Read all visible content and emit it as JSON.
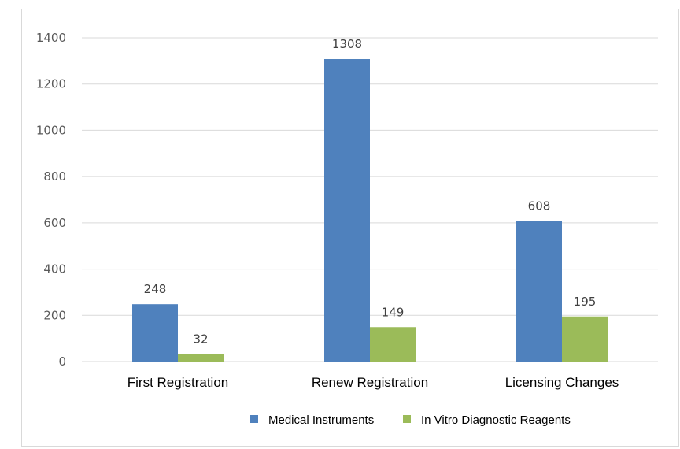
{
  "chart_data": {
    "type": "bar",
    "title": "",
    "xlabel": "",
    "ylabel": "",
    "categories": [
      "First Registration",
      "Renew Registration",
      "Licensing Changes"
    ],
    "series": [
      {
        "name": "Medical Instruments",
        "color": "#4f81bd",
        "values": [
          248,
          1308,
          608
        ]
      },
      {
        "name": "In Vitro Diagnostic Reagents",
        "color": "#9bbb59",
        "values": [
          32,
          149,
          195
        ]
      }
    ],
    "ylim": [
      0,
      1400
    ],
    "yticks": [
      0,
      200,
      400,
      600,
      800,
      1000,
      1200,
      1400
    ],
    "grid": true,
    "legend_position": "bottom"
  }
}
